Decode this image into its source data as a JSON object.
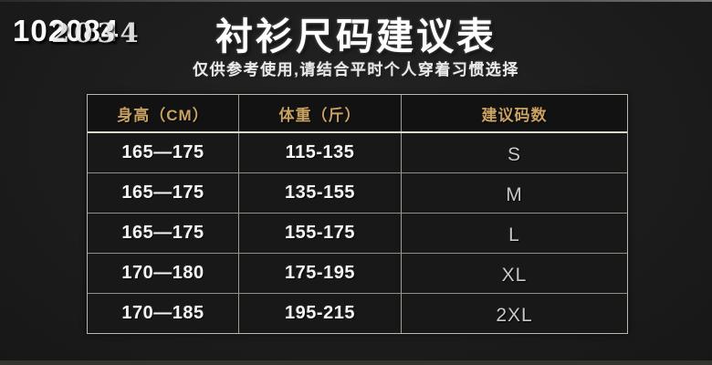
{
  "watermark": {
    "front": "102084",
    "back": "2034"
  },
  "header": {
    "title": "衬衫尺码建议表",
    "subtitle": "仅供参考使用,请结合平时个人穿着习惯选择"
  },
  "chart_data": {
    "type": "table",
    "title": "衬衫尺码建议表",
    "subtitle": "仅供参考使用,请结合平时个人穿着习惯选择",
    "columns": [
      "身高（CM）",
      "体重（斤）",
      "建议码数"
    ],
    "rows": [
      [
        "165—175",
        "115-135",
        "S"
      ],
      [
        "165—175",
        "135-155",
        "M"
      ],
      [
        "165—175",
        "155-175",
        "L"
      ],
      [
        "170—180",
        "175-195",
        "XL"
      ],
      [
        "170—185",
        "195-215",
        "2XL"
      ]
    ]
  },
  "colors": {
    "background": "#1c1c1c",
    "header_text_gold": "#c9a162",
    "body_text": "#f5f5f5",
    "size_text": "#c8c8c8",
    "border": "#9d9d94"
  }
}
